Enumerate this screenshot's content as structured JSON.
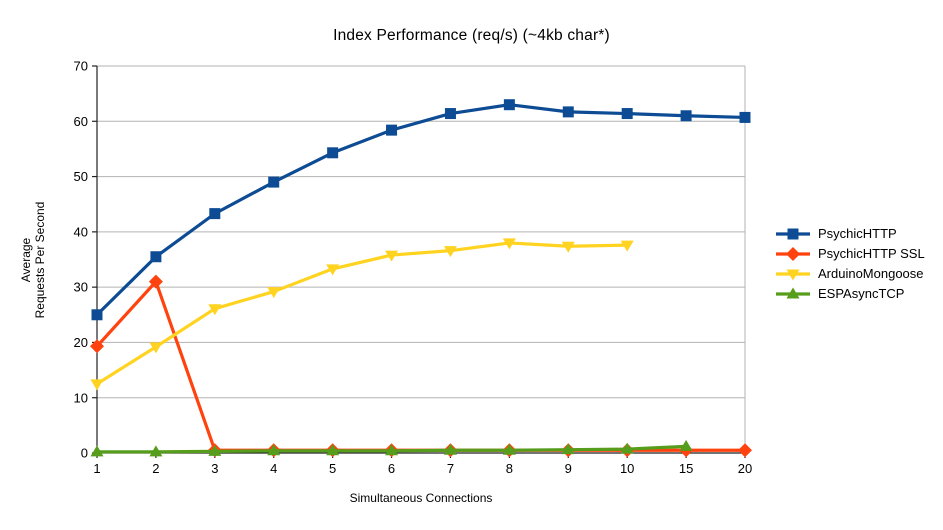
{
  "title": "Index Performance (req/s) (~4kb char*)",
  "colors": {
    "background": "#ffffff",
    "gridline": "#b3b3b3",
    "axis": "#222222",
    "text": "#000000",
    "series_blue": "#0d4c94",
    "series_red": "#ff420e",
    "series_yellow": "#ffd320",
    "series_green": "#579d1c"
  },
  "chart_data": {
    "type": "line",
    "title": "Index Performance (req/s) (~4kb char*)",
    "xlabel": "Simultaneous Connections",
    "ylabel": "Average Requests Per Second",
    "ylabel_lines": [
      "Average",
      "Requests Per Second"
    ],
    "categories": [
      "1",
      "2",
      "3",
      "4",
      "5",
      "6",
      "7",
      "8",
      "9",
      "10",
      "15",
      "20"
    ],
    "ylim": [
      0,
      70
    ],
    "ytick_step": 10,
    "ytick_labels": [
      "0",
      "10",
      "20",
      "30",
      "40",
      "50",
      "60",
      "70"
    ],
    "grid": "horizontal",
    "legend_position": "right",
    "series": [
      {
        "name": "PsychicHTTP",
        "color": "#0d4c94",
        "marker": "square",
        "values": [
          25.0,
          35.5,
          43.3,
          49.0,
          54.3,
          58.4,
          61.4,
          63.0,
          61.7,
          61.4,
          61.0,
          60.7
        ]
      },
      {
        "name": "PsychicHTTP SSL",
        "color": "#ff420e",
        "marker": "diamond",
        "values": [
          19.3,
          31.0,
          0.5,
          0.5,
          0.5,
          0.5,
          0.5,
          0.5,
          0.5,
          0.5,
          0.5,
          0.5
        ]
      },
      {
        "name": "ArduinoMongoose",
        "color": "#ffd320",
        "marker": "triangle-down",
        "values": [
          12.5,
          19.2,
          26.1,
          29.2,
          33.3,
          35.8,
          36.6,
          38.0,
          37.4,
          37.6,
          null,
          null
        ]
      },
      {
        "name": "ESPAsyncTCP",
        "color": "#579d1c",
        "marker": "triangle-up",
        "values": [
          0.2,
          0.2,
          0.3,
          0.4,
          0.4,
          0.4,
          0.5,
          0.5,
          0.6,
          0.7,
          1.2,
          null
        ]
      }
    ]
  }
}
